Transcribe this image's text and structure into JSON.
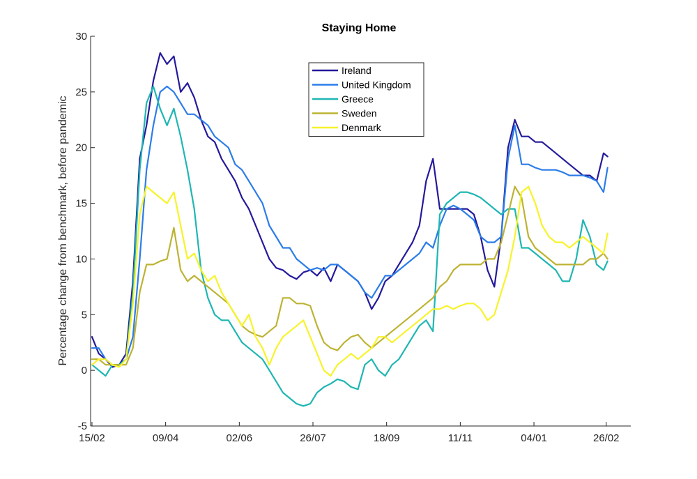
{
  "chart_data": {
    "type": "line",
    "title": "Staying Home",
    "xlabel": "",
    "ylabel": "Percentage change from benchmark, before pandemic",
    "x_tick_labels": [
      "15/02",
      "09/04",
      "02/06",
      "26/07",
      "18/09",
      "11/11",
      "04/01",
      "26/02"
    ],
    "x_ticks_day": [
      0,
      54,
      108,
      162,
      216,
      270,
      324,
      377
    ],
    "xlim": [
      -1,
      395
    ],
    "ylim": [
      -5,
      30
    ],
    "y_ticks": [
      -5,
      0,
      5,
      10,
      15,
      20,
      25,
      30
    ],
    "grid": false,
    "legend_position": "top-center",
    "series": [
      {
        "name": "Ireland",
        "color": "#241a9b",
        "x": [
          0,
          5,
          10,
          15,
          20,
          25,
          30,
          35,
          40,
          45,
          50,
          55,
          60,
          65,
          70,
          75,
          80,
          85,
          90,
          95,
          100,
          105,
          110,
          115,
          120,
          125,
          130,
          135,
          140,
          145,
          150,
          155,
          160,
          165,
          170,
          175,
          180,
          185,
          190,
          195,
          200,
          205,
          210,
          215,
          220,
          225,
          230,
          235,
          240,
          245,
          250,
          255,
          260,
          265,
          270,
          275,
          280,
          285,
          290,
          295,
          300,
          305,
          310,
          315,
          320,
          325,
          330,
          335,
          340,
          345,
          350,
          355,
          360,
          365,
          370,
          375,
          378
        ],
        "y": [
          3.0,
          1.5,
          1.0,
          0.3,
          0.5,
          1.5,
          8.0,
          19.0,
          22.0,
          26.0,
          28.5,
          27.5,
          28.2,
          25.0,
          25.8,
          24.5,
          22.5,
          21.0,
          20.5,
          19.0,
          18.0,
          17.0,
          15.5,
          14.5,
          13.0,
          11.5,
          10.0,
          9.2,
          9.0,
          8.5,
          8.2,
          8.8,
          9.0,
          8.5,
          9.2,
          8.0,
          9.5,
          9.0,
          8.5,
          8.0,
          7.0,
          5.5,
          6.5,
          8.0,
          8.5,
          9.5,
          10.5,
          11.5,
          13.0,
          17.0,
          19.0,
          14.5,
          14.5,
          14.5,
          14.5,
          14.5,
          14.0,
          12.0,
          9.0,
          7.5,
          12.0,
          20.0,
          22.5,
          21.0,
          21.0,
          20.5,
          20.5,
          20.0,
          19.5,
          19.0,
          18.5,
          18.0,
          17.5,
          17.5,
          17.0,
          19.5,
          19.2
        ]
      },
      {
        "name": "United Kingdom",
        "color": "#2b7de9",
        "x": [
          0,
          5,
          10,
          15,
          20,
          25,
          30,
          35,
          40,
          45,
          50,
          55,
          60,
          65,
          70,
          75,
          80,
          85,
          90,
          95,
          100,
          105,
          110,
          115,
          120,
          125,
          130,
          135,
          140,
          145,
          150,
          155,
          160,
          165,
          170,
          175,
          180,
          185,
          190,
          195,
          200,
          205,
          210,
          215,
          220,
          225,
          230,
          235,
          240,
          245,
          250,
          255,
          260,
          265,
          270,
          275,
          280,
          285,
          290,
          295,
          300,
          305,
          310,
          315,
          320,
          325,
          330,
          335,
          340,
          345,
          350,
          355,
          360,
          365,
          370,
          375,
          378
        ],
        "y": [
          2.0,
          2.0,
          1.0,
          0.5,
          0.5,
          1.0,
          3.0,
          10.0,
          18.0,
          22.0,
          25.0,
          25.5,
          25.0,
          24.0,
          23.0,
          23.0,
          22.5,
          22.0,
          21.0,
          20.5,
          20.0,
          18.5,
          18.0,
          17.0,
          16.0,
          15.0,
          13.0,
          12.0,
          11.0,
          11.0,
          10.0,
          9.5,
          9.0,
          9.2,
          9.0,
          9.5,
          9.5,
          9.0,
          8.5,
          8.0,
          7.0,
          6.5,
          7.5,
          8.5,
          8.5,
          9.0,
          9.5,
          10.0,
          10.5,
          11.5,
          11.0,
          13.0,
          14.5,
          14.8,
          14.5,
          14.0,
          13.5,
          12.0,
          11.5,
          11.5,
          12.0,
          19.0,
          22.0,
          18.5,
          18.5,
          18.2,
          18.0,
          18.0,
          18.0,
          17.8,
          17.5,
          17.5,
          17.5,
          17.3,
          17.0,
          16.0,
          18.2
        ]
      },
      {
        "name": "Greece",
        "color": "#1fb6b3",
        "x": [
          0,
          5,
          10,
          15,
          20,
          25,
          30,
          35,
          40,
          45,
          50,
          55,
          60,
          65,
          70,
          75,
          80,
          85,
          90,
          95,
          100,
          105,
          110,
          115,
          120,
          125,
          130,
          135,
          140,
          145,
          150,
          155,
          160,
          165,
          170,
          175,
          180,
          185,
          190,
          195,
          200,
          205,
          210,
          215,
          220,
          225,
          230,
          235,
          240,
          245,
          250,
          255,
          260,
          265,
          270,
          275,
          280,
          285,
          290,
          295,
          300,
          305,
          310,
          315,
          320,
          325,
          330,
          335,
          340,
          345,
          350,
          355,
          360,
          365,
          370,
          375,
          378
        ],
        "y": [
          0.5,
          0.0,
          -0.5,
          0.5,
          0.5,
          1.0,
          7.0,
          18.0,
          24.0,
          25.5,
          23.5,
          22.0,
          23.5,
          21.0,
          18.0,
          14.5,
          9.0,
          6.5,
          5.0,
          4.5,
          4.5,
          3.5,
          2.5,
          2.0,
          1.5,
          1.0,
          0.0,
          -1.0,
          -2.0,
          -2.5,
          -3.0,
          -3.2,
          -3.0,
          -2.0,
          -1.5,
          -1.2,
          -0.8,
          -1.0,
          -1.5,
          -1.7,
          0.5,
          1.0,
          0.0,
          -0.5,
          0.5,
          1.0,
          2.0,
          3.0,
          4.0,
          4.5,
          3.5,
          14.0,
          15.0,
          15.5,
          16.0,
          16.0,
          15.8,
          15.5,
          15.0,
          14.5,
          14.0,
          14.5,
          14.5,
          11.0,
          11.0,
          10.5,
          10.0,
          9.5,
          9.0,
          8.0,
          8.0,
          10.0,
          13.5,
          12.0,
          9.5,
          9.0,
          9.8
        ]
      },
      {
        "name": "Sweden",
        "color": "#bdb332",
        "x": [
          0,
          5,
          10,
          15,
          20,
          25,
          30,
          35,
          40,
          45,
          50,
          55,
          60,
          65,
          70,
          75,
          80,
          85,
          90,
          95,
          100,
          105,
          110,
          115,
          120,
          125,
          130,
          135,
          140,
          145,
          150,
          155,
          160,
          165,
          170,
          175,
          180,
          185,
          190,
          195,
          200,
          205,
          210,
          215,
          220,
          225,
          230,
          235,
          240,
          245,
          250,
          255,
          260,
          265,
          270,
          275,
          280,
          285,
          290,
          295,
          300,
          305,
          310,
          315,
          320,
          325,
          330,
          335,
          340,
          345,
          350,
          355,
          360,
          365,
          370,
          375,
          378
        ],
        "y": [
          1.0,
          1.0,
          0.5,
          0.5,
          0.5,
          0.5,
          2.0,
          7.0,
          9.5,
          9.5,
          9.8,
          10.0,
          12.8,
          9.0,
          8.0,
          8.5,
          8.0,
          7.5,
          7.0,
          6.5,
          6.0,
          5.0,
          4.0,
          3.5,
          3.2,
          3.0,
          3.5,
          4.0,
          6.5,
          6.5,
          6.0,
          6.0,
          5.8,
          4.0,
          2.5,
          2.0,
          1.8,
          2.5,
          3.0,
          3.2,
          2.5,
          2.0,
          2.5,
          3.0,
          3.5,
          4.0,
          4.5,
          5.0,
          5.5,
          6.0,
          6.5,
          7.5,
          8.0,
          9.0,
          9.5,
          9.5,
          9.5,
          9.5,
          10.0,
          10.0,
          11.5,
          14.0,
          16.5,
          15.5,
          12.0,
          11.0,
          10.5,
          10.0,
          9.5,
          9.5,
          9.5,
          9.5,
          9.5,
          10.0,
          10.0,
          10.5,
          10.0
        ]
      },
      {
        "name": "Denmark",
        "color": "#f7f32a",
        "x": [
          0,
          5,
          10,
          15,
          20,
          25,
          30,
          35,
          40,
          45,
          50,
          55,
          60,
          65,
          70,
          75,
          80,
          85,
          90,
          95,
          100,
          105,
          110,
          115,
          120,
          125,
          130,
          135,
          140,
          145,
          150,
          155,
          160,
          165,
          170,
          175,
          180,
          185,
          190,
          195,
          200,
          205,
          210,
          215,
          220,
          225,
          230,
          235,
          240,
          245,
          250,
          255,
          260,
          265,
          270,
          275,
          280,
          285,
          290,
          295,
          300,
          305,
          310,
          315,
          320,
          325,
          330,
          335,
          340,
          345,
          350,
          355,
          360,
          365,
          370,
          375,
          378
        ],
        "y": [
          0.5,
          1.0,
          1.0,
          0.5,
          0.3,
          1.0,
          6.0,
          14.0,
          16.5,
          16.0,
          15.5,
          15.0,
          16.0,
          13.0,
          10.0,
          10.5,
          9.0,
          8.0,
          8.5,
          7.0,
          6.0,
          5.0,
          4.0,
          5.0,
          3.0,
          2.0,
          0.5,
          2.0,
          3.0,
          3.5,
          4.0,
          4.5,
          3.0,
          1.5,
          0.0,
          -0.5,
          0.5,
          1.0,
          1.5,
          1.0,
          1.5,
          2.0,
          3.0,
          3.0,
          2.5,
          3.0,
          3.5,
          4.0,
          4.5,
          5.0,
          5.5,
          5.5,
          5.8,
          5.5,
          5.8,
          6.0,
          6.0,
          5.5,
          4.5,
          5.0,
          7.0,
          9.0,
          12.0,
          16.0,
          16.5,
          15.0,
          13.0,
          12.0,
          11.5,
          11.5,
          11.0,
          11.5,
          12.0,
          11.5,
          11.0,
          10.5,
          12.3
        ]
      }
    ]
  }
}
